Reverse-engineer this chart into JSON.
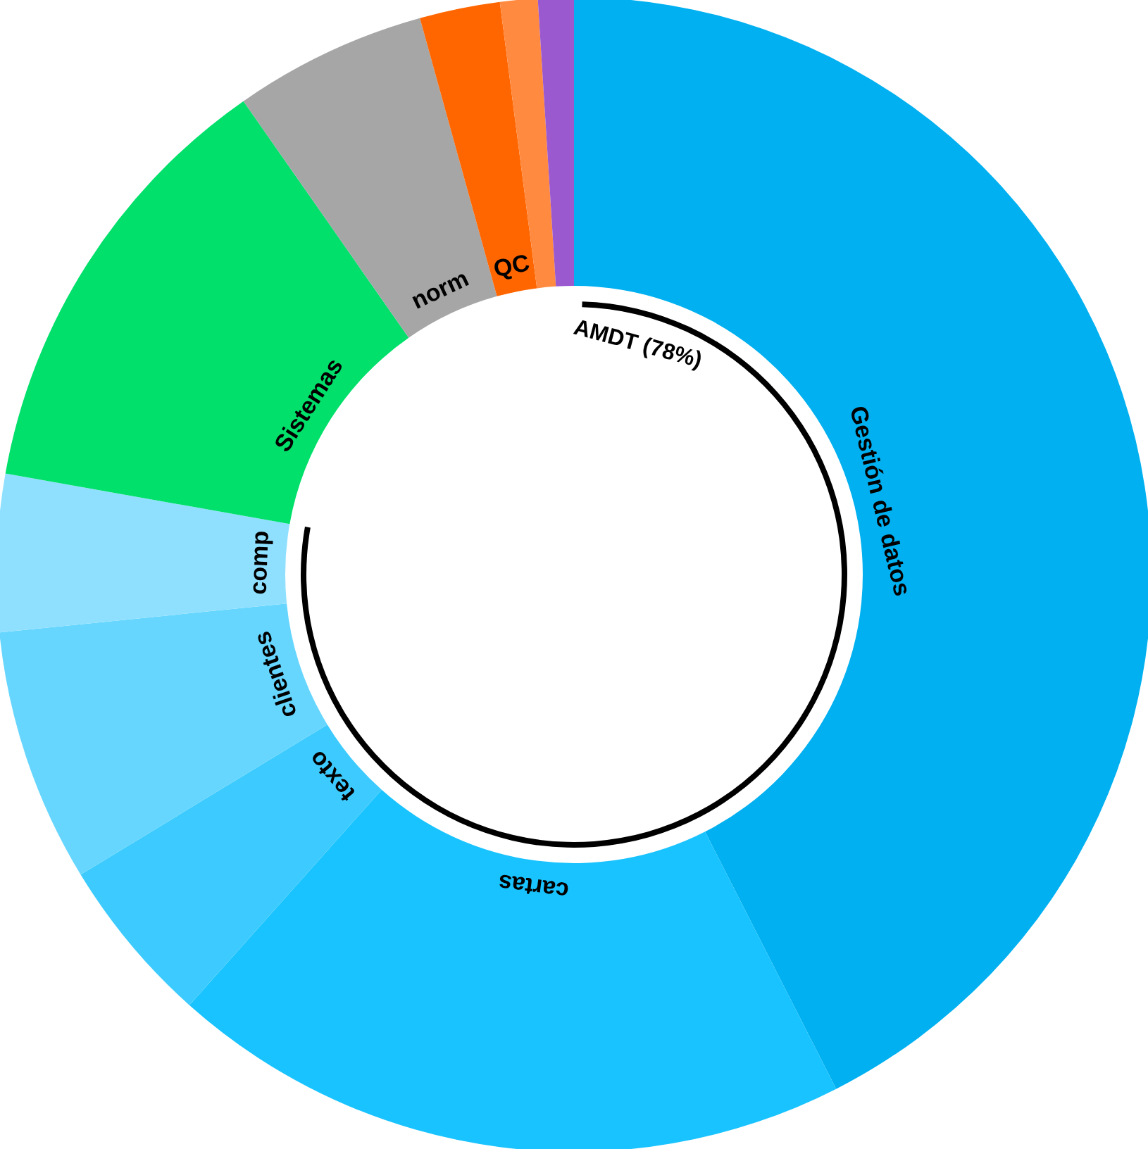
{
  "chart_data": {
    "type": "donut",
    "categories": [
      "Gestión de datos",
      "cartas",
      "texto",
      "clientes",
      "comp",
      "Sistemas",
      "norm",
      "QC",
      null,
      null
    ],
    "values": [
      42.5,
      19.1,
      4.7,
      7.1,
      4.4,
      12.5,
      5.4,
      2.25,
      1.05,
      1.0
    ],
    "colors": [
      "#00b0f0",
      "#19c3ff",
      "#3dcbff",
      "#66d6ff",
      "#8fe0ff",
      "#00e06a",
      "#a6a6a6",
      "#ff6600",
      "#ff8a40",
      "#9b59d0"
    ],
    "annotations": [
      "AMDT (78%)"
    ]
  }
}
